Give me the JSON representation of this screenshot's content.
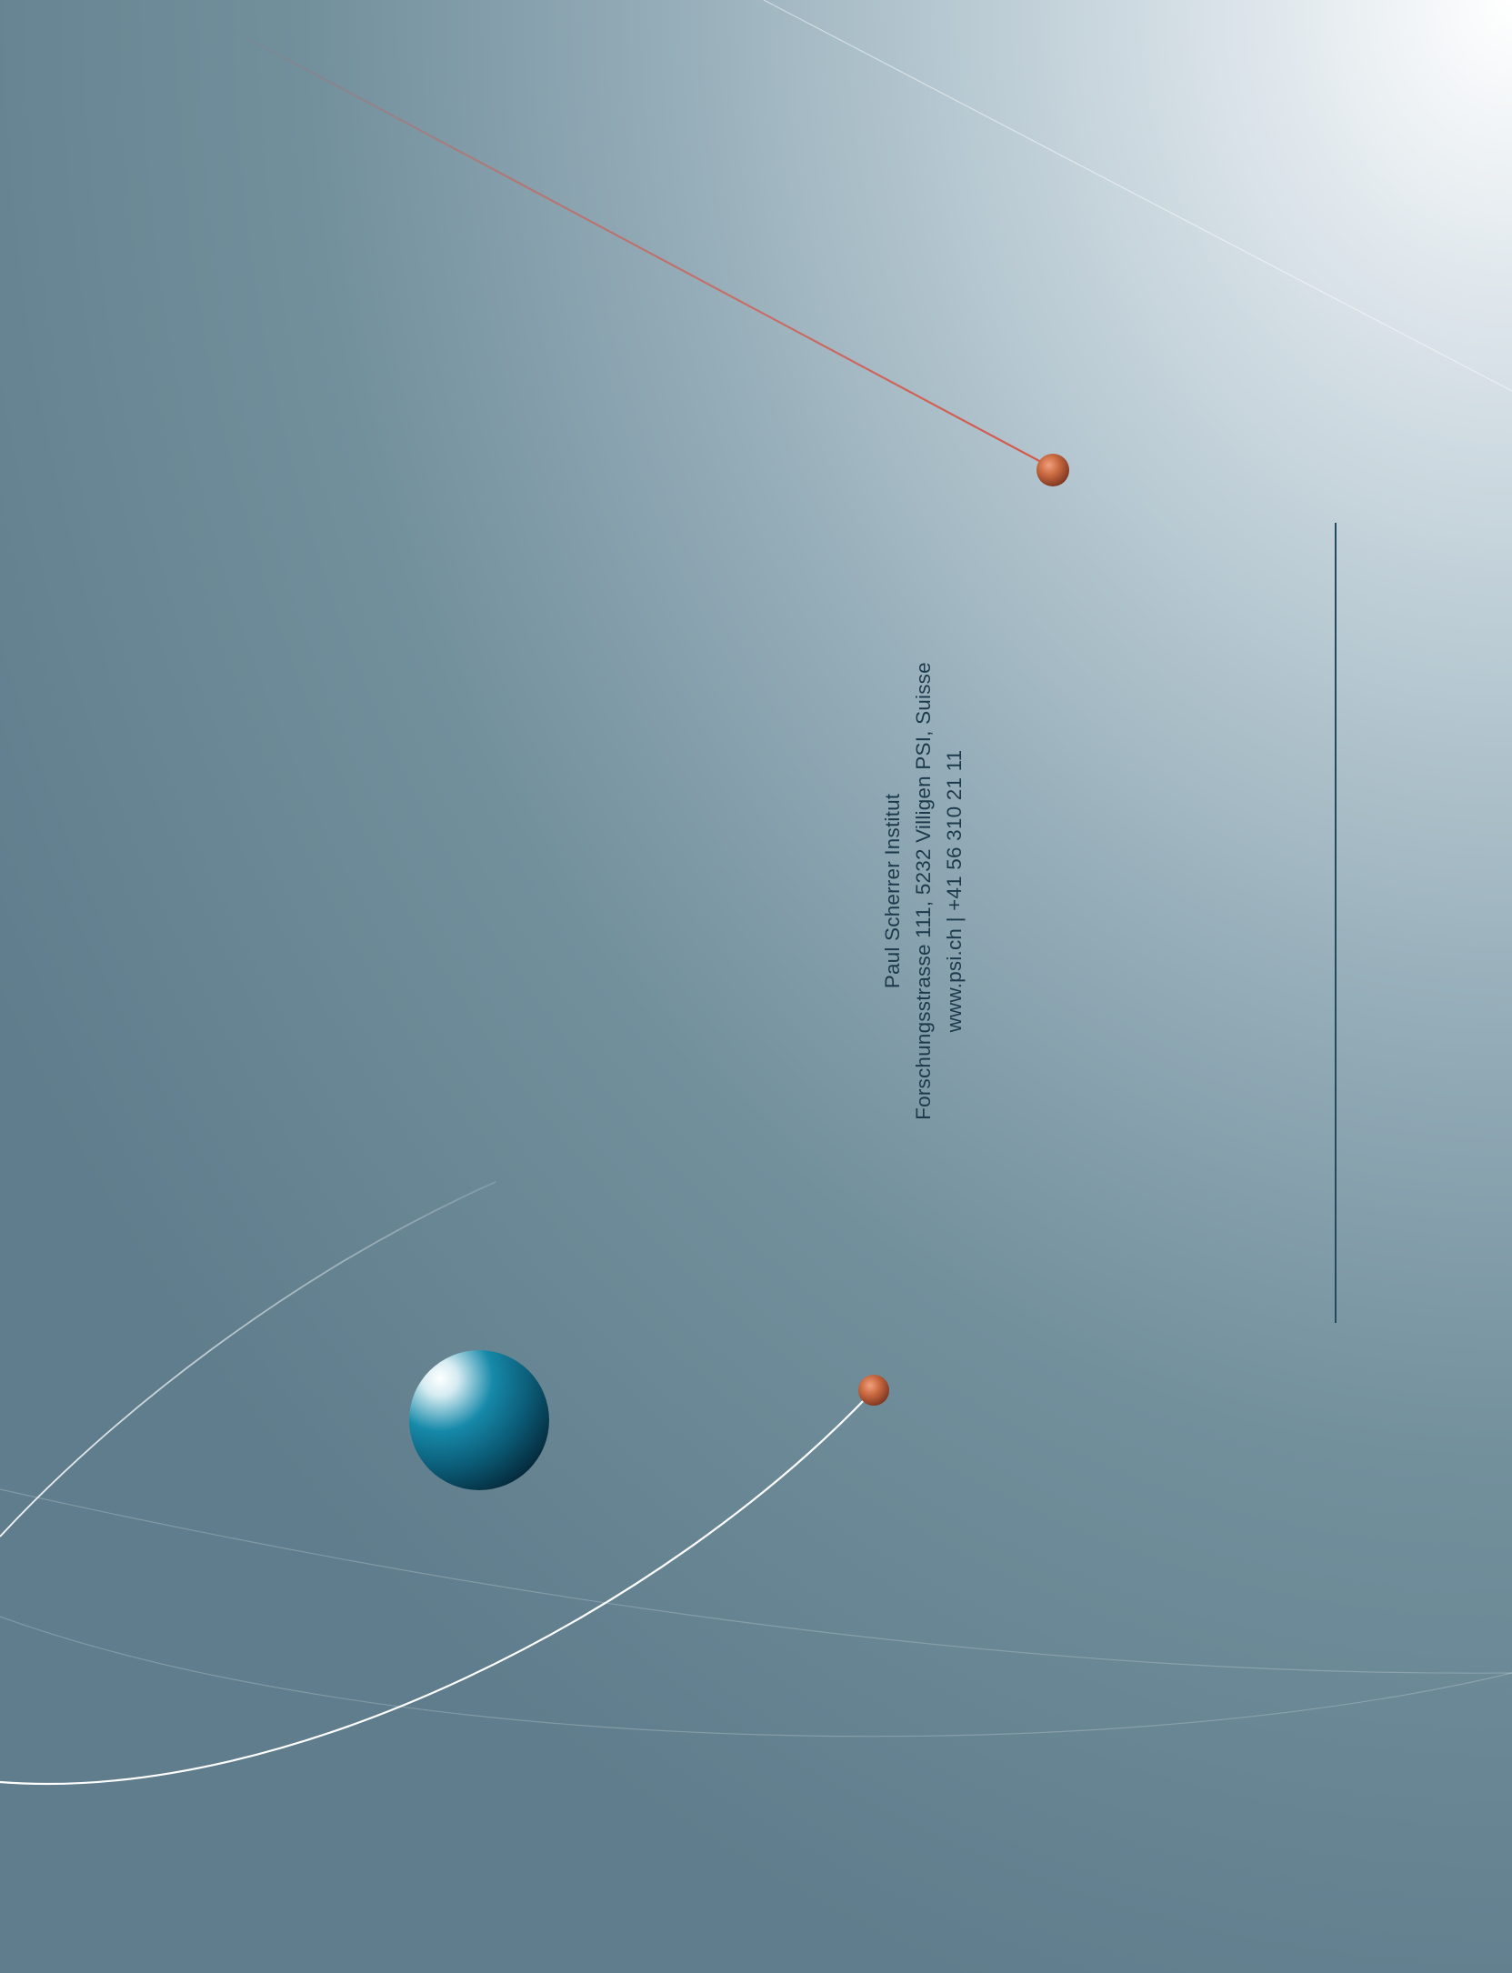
{
  "institution": {
    "name": "Paul Scherrer Institut",
    "address": "Forschungsstrasse 111, 5232 Villigen PSI, Suisse",
    "contact": "www.psi.ch | +41 56 310 21 11"
  },
  "colors": {
    "background_light": "#ffffff",
    "background_dark": "#5f7d8c",
    "text": "#1c3a4c",
    "rule": "#244a5e",
    "accent_red_line": "#d4574b",
    "copper_sphere": "#b8613f",
    "blue_sphere": "#0f6d8c",
    "orbit_lines": "#ffffff"
  }
}
